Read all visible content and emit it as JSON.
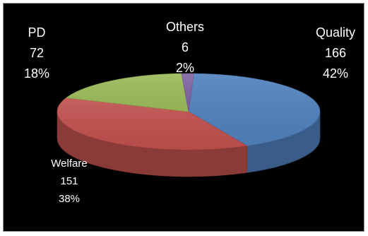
{
  "chart_data": {
    "type": "pie",
    "title": "",
    "legend": "none",
    "three_d": true,
    "slices": [
      {
        "name": "Quality",
        "value": 166,
        "percent": "42%",
        "color": "#4f81bd",
        "value_label": "166"
      },
      {
        "name": "Welfare",
        "value": 151,
        "percent": "38%",
        "color": "#c0504d",
        "value_label": "151"
      },
      {
        "name": "PD",
        "value": 72,
        "percent": "18%",
        "color": "#9bbb59",
        "value_label": "72"
      },
      {
        "name": "Others",
        "value": 6,
        "percent": "2%",
        "color": "#8064a2",
        "value_label": "6"
      }
    ]
  }
}
